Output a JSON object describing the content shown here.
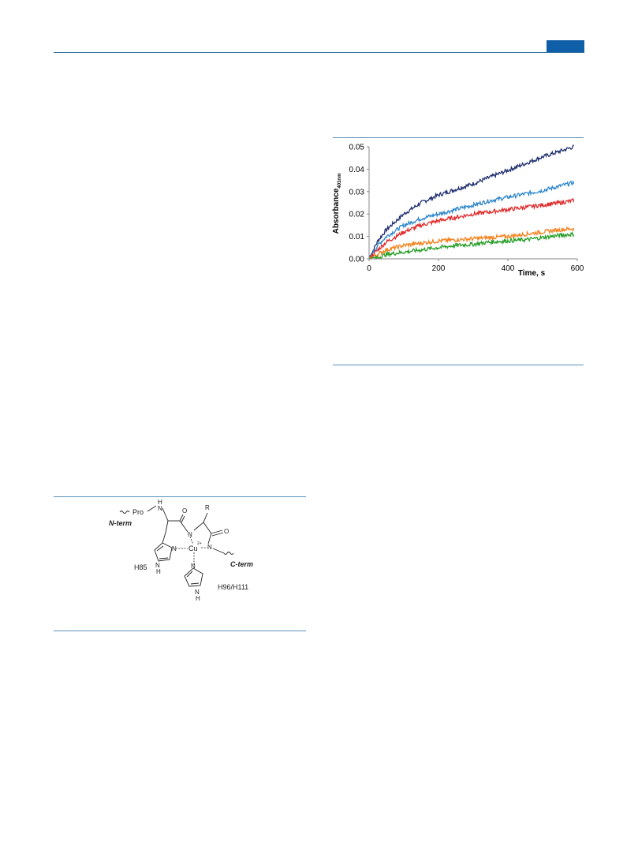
{
  "header": {
    "accent_color": "#0f5ea8",
    "rule_color": "#2f6f9f",
    "page_badge": ""
  },
  "figure_top_right": {
    "chart_data": {
      "type": "line",
      "title": "",
      "xlabel": "Time, s",
      "ylabel_main": "Absorbance",
      "ylabel_sub": "401nm",
      "xlim": [
        0,
        600
      ],
      "ylim": [
        0,
        0.05
      ],
      "x_ticks": [
        "0",
        "200",
        "400",
        "600"
      ],
      "y_ticks": [
        "0.00",
        "0.01",
        "0.02",
        "0.03",
        "0.04",
        "0.05"
      ],
      "grid": false,
      "legend": "none",
      "x": [
        0,
        25,
        50,
        100,
        150,
        200,
        250,
        300,
        350,
        400,
        450,
        500,
        550,
        590
      ],
      "series": [
        {
          "color": "#1f2f6e",
          "values": [
            0.0,
            0.008,
            0.013,
            0.02,
            0.025,
            0.0285,
            0.031,
            0.0335,
            0.0365,
            0.0395,
            0.0425,
            0.0455,
            0.048,
            0.05
          ]
        },
        {
          "color": "#2e87cc",
          "values": [
            0.0,
            0.006,
            0.01,
            0.015,
            0.018,
            0.02,
            0.022,
            0.024,
            0.026,
            0.0275,
            0.029,
            0.0305,
            0.0325,
            0.034
          ]
        },
        {
          "color": "#e02a2a",
          "values": [
            0.0,
            0.004,
            0.0075,
            0.012,
            0.015,
            0.017,
            0.0185,
            0.02,
            0.021,
            0.022,
            0.023,
            0.024,
            0.025,
            0.026
          ]
        },
        {
          "color": "#f5821f",
          "values": [
            0.0,
            0.002,
            0.004,
            0.006,
            0.007,
            0.008,
            0.0085,
            0.009,
            0.0095,
            0.01,
            0.011,
            0.012,
            0.013,
            0.0135
          ]
        },
        {
          "color": "#2aa02a",
          "values": [
            0.0,
            0.0005,
            0.002,
            0.003,
            0.004,
            0.005,
            0.006,
            0.0065,
            0.0075,
            0.008,
            0.0085,
            0.0095,
            0.0105,
            0.011
          ]
        }
      ]
    }
  },
  "figure_bottom_left": {
    "labels": {
      "pro": "Pro",
      "nh": "H",
      "n_top": "N",
      "o_left": "O",
      "o_right": "O",
      "r": "R",
      "n_term": "N-term",
      "c_term": "C-term",
      "cu": "Cu",
      "cu_charge": "2+",
      "n_amide1": "N",
      "n_amide2": "N",
      "n_imid1": "N",
      "n_imid1_h": "N",
      "h_imid1": "H",
      "h85": "H85",
      "n_imid2": "N",
      "n_imid2_h": "N",
      "h_imid2": "H",
      "h96_h111": "H96/H111"
    }
  }
}
